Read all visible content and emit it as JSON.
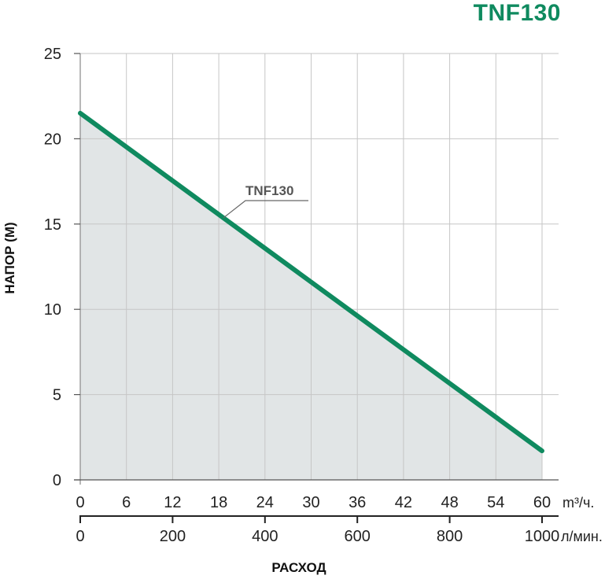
{
  "chart_data": {
    "type": "area",
    "title": "TNF130",
    "ylabel": "НАПОР (М)",
    "xlabel": "РАСХОД",
    "x_unit_primary": "m³/ч.",
    "x_unit_secondary": "л/мин.",
    "xlim": [
      0,
      62
    ],
    "ylim": [
      0,
      25
    ],
    "x_ticks_primary": [
      0,
      6,
      12,
      18,
      24,
      30,
      36,
      42,
      48,
      54,
      60
    ],
    "x_ticks_secondary": [
      0,
      200,
      400,
      600,
      800,
      1000
    ],
    "y_ticks": [
      0,
      5,
      10,
      15,
      20,
      25
    ],
    "grid": true,
    "series": [
      {
        "name": "TNF130",
        "color": "#0f8a5f",
        "fill": "#e1e5e6",
        "x": [
          0,
          60
        ],
        "y": [
          21.5,
          1.7
        ]
      }
    ]
  }
}
